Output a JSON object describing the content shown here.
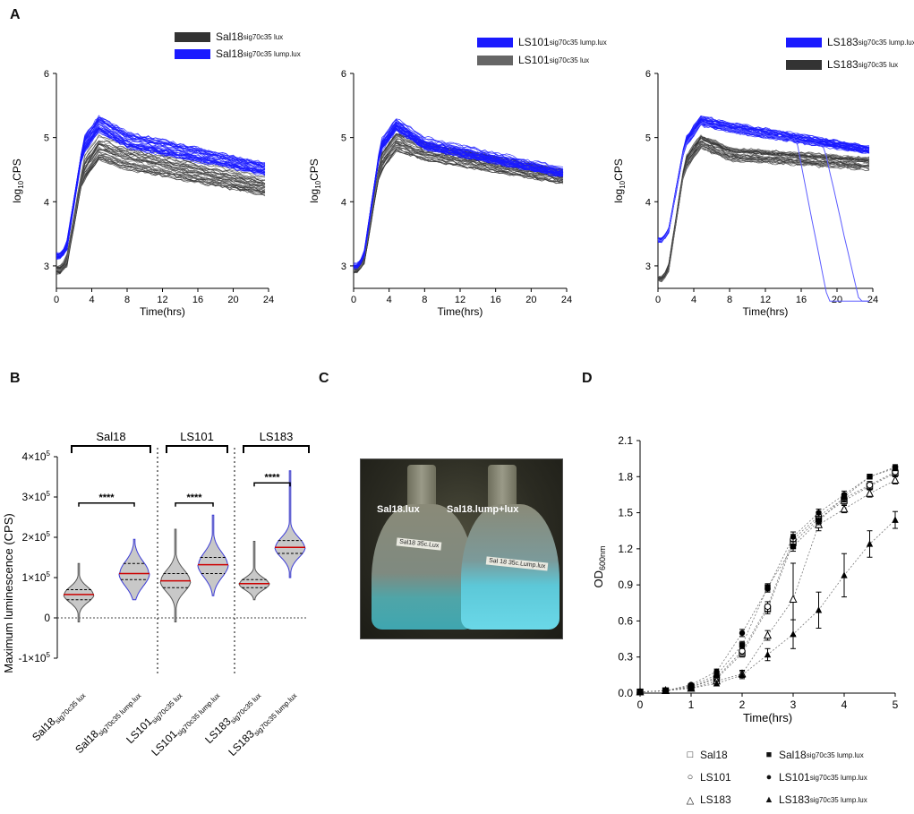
{
  "panels": {
    "A": "A",
    "B": "B",
    "C": "C",
    "D": "D"
  },
  "colors": {
    "lump": "#1a1aff",
    "lux": "#333333",
    "lux_gray": "#666666",
    "median": "#cc0000",
    "violin_fill": "#c8c8c8",
    "violin_edge": "#3b3bd6"
  },
  "panelA": {
    "common": {
      "xlabel": "Time(hrs)",
      "ylabel_main": "log",
      "ylabel_sub": "10",
      "ylabel_tail": "CPS",
      "xticks": [
        "0",
        "4",
        "8",
        "12",
        "16",
        "20",
        "24"
      ],
      "yticks": [
        "3",
        "4",
        "5",
        "6"
      ],
      "xlim": [
        0,
        24
      ],
      "ylim": [
        2.65,
        6
      ]
    },
    "charts": [
      {
        "name": "Sal18",
        "legend": [
          {
            "main": "Sal18",
            "sub": "sig70c35 lux",
            "color": "#333333"
          },
          {
            "main": "Sal18",
            "sub": "sig70c35 lump.lux",
            "color": "#1a1aff"
          }
        ],
        "lump": {
          "start": 3.15,
          "rise_end": 3.8,
          "peak": 5.2,
          "plateau": 4.95,
          "end": 4.5,
          "spread": 0.25
        },
        "lux": {
          "start": 2.95,
          "rise_end": 4.3,
          "peak": 4.85,
          "plateau": 4.7,
          "end": 4.25,
          "spread": 0.4
        }
      },
      {
        "name": "LS101",
        "legend": [
          {
            "main": "LS101",
            "sub": "sig70c35 lump.lux",
            "color": "#1a1aff"
          },
          {
            "main": "LS101",
            "sub": "sig70c35 lux",
            "color": "#666666"
          }
        ],
        "lump": {
          "start": 3.0,
          "rise_end": 3.6,
          "peak": 5.2,
          "plateau": 4.9,
          "end": 4.45,
          "spread": 0.2
        },
        "lux": {
          "start": 2.95,
          "rise_end": 3.8,
          "peak": 4.95,
          "plateau": 4.8,
          "end": 4.4,
          "spread": 0.3
        }
      },
      {
        "name": "LS183",
        "legend": [
          {
            "main": "LS183",
            "sub": "sig70c35 lump.lux",
            "color": "#1a1aff"
          },
          {
            "main": "LS183",
            "sub": "sig70c35 lux",
            "color": "#333333"
          }
        ],
        "lump": {
          "start": 3.4,
          "rise_end": 3.9,
          "peak": 5.25,
          "plateau": 5.15,
          "end": 4.8,
          "spread": 0.15
        },
        "lux": {
          "start": 2.8,
          "rise_end": 4.1,
          "peak": 4.95,
          "plateau": 4.75,
          "end": 4.6,
          "spread": 0.2
        },
        "drops": [
          {
            "t_start": 15.5,
            "t_end": 19,
            "value_end": 2.45
          },
          {
            "t_start": 18.5,
            "t_end": 22.5,
            "value_end": 2.45
          }
        ]
      }
    ]
  },
  "chart_data": [
    {
      "type": "violin",
      "title": "",
      "ylabel": "Maximum luminescence (CPS)",
      "yticks": [
        {
          "coef": "4×10",
          "exp": "5",
          "value": 400000
        },
        {
          "coef": "3×10",
          "exp": "5",
          "value": 300000
        },
        {
          "coef": "2×10",
          "exp": "5",
          "value": 200000
        },
        {
          "coef": "1×10",
          "exp": "5",
          "value": 100000
        },
        {
          "coef": "0",
          "exp": "",
          "value": 0
        },
        {
          "coef": "-1×10",
          "exp": "5",
          "value": -100000
        }
      ],
      "ylim": [
        -100000,
        400000
      ],
      "groups": [
        {
          "name": "Sal18"
        },
        {
          "name": "LS101"
        },
        {
          "name": "LS183"
        }
      ],
      "categories": [
        {
          "main": "Sal18",
          "sub": "sig70c35 lux",
          "median": 58000,
          "q1": 45000,
          "q3": 70000,
          "min": -10000,
          "max": 135000,
          "outline": "#555555"
        },
        {
          "main": "Sal18",
          "sub": "sig70c35 lump.lux",
          "median": 110000,
          "q1": 95000,
          "q3": 135000,
          "min": 45000,
          "max": 195000,
          "outline": "#3b3bd6"
        },
        {
          "main": "LS101",
          "sub": "sig70c35 lux",
          "median": 92000,
          "q1": 75000,
          "q3": 110000,
          "min": -10000,
          "max": 220000,
          "outline": "#555555"
        },
        {
          "main": "LS101",
          "sub": "sig70c35 lump.lux",
          "median": 132000,
          "q1": 110000,
          "q3": 150000,
          "min": 55000,
          "max": 255000,
          "outline": "#3b3bd6"
        },
        {
          "main": "LS183",
          "sub": "sig70c35 lux",
          "median": 85000,
          "q1": 75000,
          "q3": 95000,
          "min": 45000,
          "max": 190000,
          "outline": "#555555"
        },
        {
          "main": "LS183",
          "sub": "sig70c35 lump.lux",
          "median": 175000,
          "q1": 160000,
          "q3": 192000,
          "min": 100000,
          "max": 365000,
          "outline": "#3b3bd6"
        }
      ],
      "significance": [
        "****",
        "****",
        "****"
      ]
    },
    {
      "type": "line",
      "title": "",
      "xlabel": "Time(hrs)",
      "ylabel_main": "OD",
      "ylabel_sub": "600nm",
      "xlim": [
        0,
        5
      ],
      "ylim": [
        0,
        2.1
      ],
      "xticks": [
        "0",
        "1",
        "2",
        "3",
        "4",
        "5"
      ],
      "yticks": [
        "0.0",
        "0.3",
        "0.6",
        "0.9",
        "1.2",
        "1.5",
        "1.8",
        "2.1"
      ],
      "x": [
        0,
        0.5,
        1,
        1.5,
        2,
        2.5,
        3,
        3.5,
        4,
        4.5,
        5
      ],
      "series": [
        {
          "name": "Sal18",
          "sub": "",
          "marker": "open-square",
          "values": [
            0.01,
            0.02,
            0.05,
            0.12,
            0.33,
            0.7,
            1.25,
            1.45,
            1.6,
            1.72,
            1.83
          ],
          "err": [
            0,
            0,
            0.01,
            0.02,
            0.03,
            0.04,
            0.04,
            0.03,
            0.03,
            0.03,
            0.03
          ]
        },
        {
          "name": "LS101",
          "sub": "",
          "marker": "open-circle",
          "values": [
            0.01,
            0.02,
            0.05,
            0.13,
            0.35,
            0.72,
            1.28,
            1.47,
            1.62,
            1.73,
            1.84
          ],
          "err": [
            0,
            0,
            0.01,
            0.02,
            0.03,
            0.04,
            0.04,
            0.03,
            0.03,
            0.03,
            0.03
          ]
        },
        {
          "name": "LS183",
          "sub": "",
          "marker": "open-triangle",
          "values": [
            0.01,
            0.02,
            0.04,
            0.1,
            0.16,
            0.48,
            0.78,
            1.4,
            1.53,
            1.66,
            1.77
          ],
          "err": [
            0,
            0,
            0.01,
            0.02,
            0.03,
            0.04,
            0.3,
            0.05,
            0.03,
            0.03,
            0.03
          ]
        },
        {
          "name": "Sal18",
          "sub": "sig70c35 lump.lux",
          "marker": "filled-square",
          "values": [
            0.01,
            0.02,
            0.06,
            0.15,
            0.4,
            0.88,
            1.22,
            1.43,
            1.63,
            1.8,
            1.87
          ],
          "err": [
            0,
            0,
            0.01,
            0.02,
            0.03,
            0.03,
            0.04,
            0.03,
            0.03,
            0.02,
            0.02
          ]
        },
        {
          "name": "LS101",
          "sub": "sig70c35 lump.lux",
          "marker": "filled-circle",
          "values": [
            0.01,
            0.02,
            0.07,
            0.18,
            0.5,
            0.87,
            1.3,
            1.5,
            1.65,
            1.8,
            1.88
          ],
          "err": [
            0,
            0,
            0.01,
            0.02,
            0.03,
            0.03,
            0.04,
            0.03,
            0.03,
            0.02,
            0.02
          ]
        },
        {
          "name": "LS183",
          "sub": "sig70c35 lump.lux",
          "marker": "filled-triangle",
          "values": [
            0.01,
            0.02,
            0.04,
            0.08,
            0.15,
            0.32,
            0.49,
            0.69,
            0.98,
            1.24,
            1.44
          ],
          "err": [
            0,
            0,
            0.01,
            0.02,
            0.03,
            0.05,
            0.12,
            0.15,
            0.18,
            0.11,
            0.07
          ]
        }
      ]
    }
  ],
  "photo": {
    "left_label": "Sal18.lux",
    "right_label": "Sal18.lump+lux",
    "left_tag": "Sal18 35c.Lux",
    "right_tag": "Sal 18 35c.Lump.lux"
  }
}
